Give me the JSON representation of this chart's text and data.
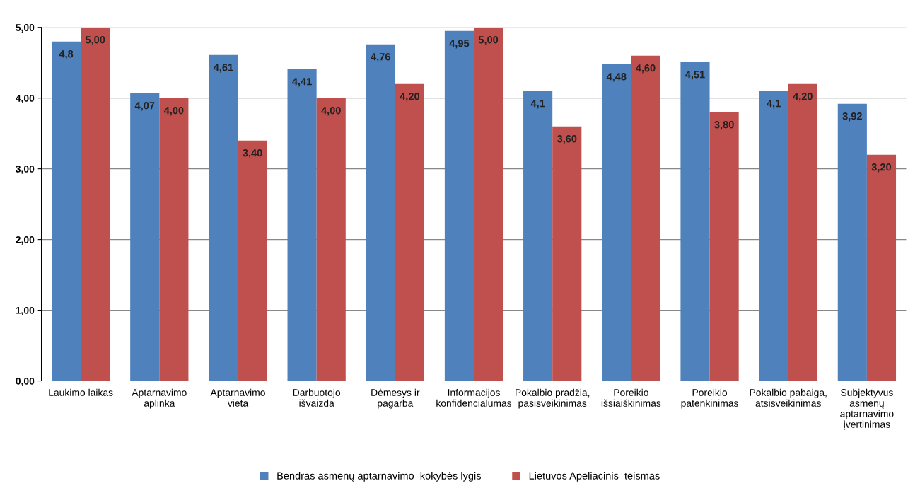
{
  "chart_data": {
    "type": "bar",
    "categories": [
      "Laukimo laikas",
      "Aptarnavimo\naplinka",
      "Aptarnavimo\nvieta",
      "Darbuotojo\nišvaizda",
      "Dėmesys ir\npagarba",
      "Informacijos\nkonfidencialumas",
      "Pokalbio pradžia,\npasisveikinimas",
      "Poreikio\nišsiaiškinimas",
      "Poreikio\npatenkinimas",
      "Pokalbio pabaiga,\natsisveikinimas",
      "Subjektyvus\nasmenų\naptarnavimo\nįvertinimas"
    ],
    "series": [
      {
        "name": "Bendras asmenų aptarnavimo  kokybės lygis",
        "color": "#4f81bd",
        "values": [
          4.8,
          4.07,
          4.61,
          4.41,
          4.76,
          4.95,
          4.1,
          4.48,
          4.51,
          4.1,
          3.92
        ],
        "value_labels": [
          "4,8",
          "4,07",
          "4,61",
          "4,41",
          "4,76",
          "4,95",
          "4,1",
          "4,48",
          "4,51",
          "4,1",
          "3,92"
        ]
      },
      {
        "name": "Lietuvos Apeliacinis  teismas",
        "color": "#c0504d",
        "values": [
          5.0,
          4.0,
          3.4,
          4.0,
          4.2,
          5.0,
          3.6,
          4.6,
          3.8,
          4.2,
          3.2
        ],
        "value_labels": [
          "5,00",
          "4,00",
          "3,40",
          "4,00",
          "4,20",
          "5,00",
          "3,60",
          "4,60",
          "3,80",
          "4,20",
          "3,20"
        ]
      }
    ],
    "ylim": [
      0,
      5
    ],
    "yticks": [
      {
        "value": 0,
        "label": "0,00"
      },
      {
        "value": 1,
        "label": "1,00"
      },
      {
        "value": 2,
        "label": "2,00"
      },
      {
        "value": 3,
        "label": "3,00"
      },
      {
        "value": 4,
        "label": "4,00"
      },
      {
        "value": 5,
        "label": "5,00"
      }
    ],
    "grid": "y",
    "legend": "bottom"
  }
}
